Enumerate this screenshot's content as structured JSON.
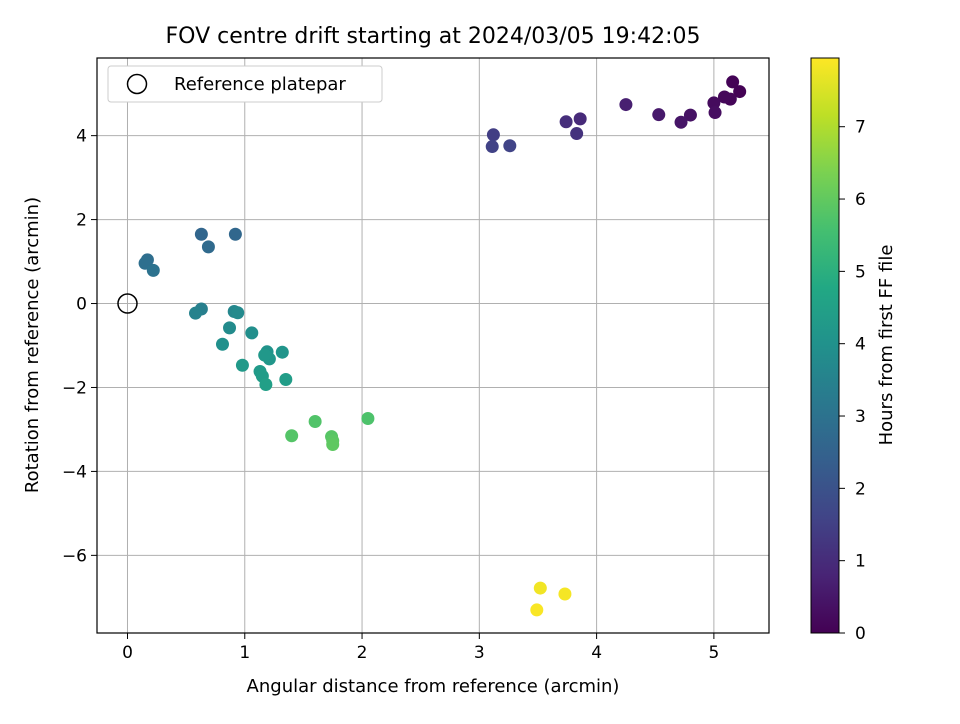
{
  "chart_data": {
    "type": "scatter",
    "title": "FOV centre drift starting at 2024/03/05 19:42:05",
    "xlabel": "Angular distance from reference (arcmin)",
    "ylabel": "Rotation from reference (arcmin)",
    "xlim": [
      -0.26,
      5.47
    ],
    "ylim": [
      -7.85,
      5.85
    ],
    "xticks": [
      0,
      1,
      2,
      3,
      4,
      5
    ],
    "yticks": [
      -6,
      -4,
      -2,
      0,
      2,
      4
    ],
    "grid": true,
    "legend": {
      "placement": "top-left",
      "entries": [
        "Reference platepar"
      ]
    },
    "reference_point": {
      "x": 0,
      "y": 0,
      "marker": "open-circle"
    },
    "colorbar": {
      "label": "Hours from first FF file",
      "range": [
        0,
        7.95
      ],
      "ticks": [
        0,
        1,
        2,
        3,
        4,
        5,
        6,
        7
      ],
      "colormap": "viridis"
    },
    "points": [
      {
        "x": 5.22,
        "y": 5.05,
        "c": 0.02
      },
      {
        "x": 5.16,
        "y": 5.28,
        "c": 0.05
      },
      {
        "x": 5.14,
        "y": 4.87,
        "c": 0.1
      },
      {
        "x": 5.09,
        "y": 4.92,
        "c": 0.15
      },
      {
        "x": 5.0,
        "y": 4.78,
        "c": 0.22
      },
      {
        "x": 5.01,
        "y": 4.55,
        "c": 0.3
      },
      {
        "x": 4.8,
        "y": 4.49,
        "c": 0.38
      },
      {
        "x": 4.72,
        "y": 4.32,
        "c": 0.45
      },
      {
        "x": 4.53,
        "y": 4.5,
        "c": 0.55
      },
      {
        "x": 4.25,
        "y": 4.74,
        "c": 0.7
      },
      {
        "x": 3.86,
        "y": 4.4,
        "c": 0.95
      },
      {
        "x": 3.74,
        "y": 4.33,
        "c": 1.05
      },
      {
        "x": 3.83,
        "y": 4.05,
        "c": 1.15
      },
      {
        "x": 3.12,
        "y": 4.02,
        "c": 1.45
      },
      {
        "x": 3.11,
        "y": 3.74,
        "c": 1.55
      },
      {
        "x": 3.26,
        "y": 3.76,
        "c": 1.6
      },
      {
        "x": 0.63,
        "y": 1.65,
        "c": 2.6
      },
      {
        "x": 0.92,
        "y": 1.65,
        "c": 2.65
      },
      {
        "x": 0.69,
        "y": 1.35,
        "c": 2.75
      },
      {
        "x": 0.17,
        "y": 1.04,
        "c": 2.85
      },
      {
        "x": 0.15,
        "y": 0.96,
        "c": 2.9
      },
      {
        "x": 0.22,
        "y": 0.79,
        "c": 3.0
      },
      {
        "x": 0.63,
        "y": -0.13,
        "c": 3.4
      },
      {
        "x": 0.58,
        "y": -0.23,
        "c": 3.5
      },
      {
        "x": 0.91,
        "y": -0.19,
        "c": 3.65
      },
      {
        "x": 0.94,
        "y": -0.22,
        "c": 3.75
      },
      {
        "x": 0.87,
        "y": -0.58,
        "c": 3.8
      },
      {
        "x": 1.06,
        "y": -0.7,
        "c": 3.9
      },
      {
        "x": 0.81,
        "y": -0.97,
        "c": 3.95
      },
      {
        "x": 1.19,
        "y": -1.15,
        "c": 4.05
      },
      {
        "x": 1.32,
        "y": -1.16,
        "c": 4.1
      },
      {
        "x": 1.21,
        "y": -1.32,
        "c": 4.15
      },
      {
        "x": 1.17,
        "y": -1.23,
        "c": 4.2
      },
      {
        "x": 0.98,
        "y": -1.47,
        "c": 4.25
      },
      {
        "x": 1.13,
        "y": -1.62,
        "c": 4.3
      },
      {
        "x": 1.15,
        "y": -1.73,
        "c": 4.35
      },
      {
        "x": 1.35,
        "y": -1.81,
        "c": 4.4
      },
      {
        "x": 1.18,
        "y": -1.93,
        "c": 4.45
      },
      {
        "x": 2.05,
        "y": -2.74,
        "c": 5.7
      },
      {
        "x": 1.6,
        "y": -2.81,
        "c": 5.75
      },
      {
        "x": 1.4,
        "y": -3.15,
        "c": 5.8
      },
      {
        "x": 1.74,
        "y": -3.17,
        "c": 5.85
      },
      {
        "x": 1.75,
        "y": -3.27,
        "c": 5.9
      },
      {
        "x": 1.75,
        "y": -3.36,
        "c": 5.95
      },
      {
        "x": 3.52,
        "y": -6.78,
        "c": 7.8
      },
      {
        "x": 3.73,
        "y": -6.92,
        "c": 7.85
      },
      {
        "x": 3.49,
        "y": -7.3,
        "c": 7.9
      }
    ]
  }
}
